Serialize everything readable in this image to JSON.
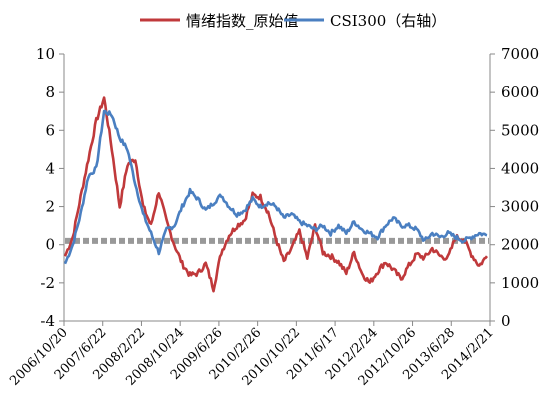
{
  "chart_data": {
    "type": "line",
    "legend_position": "top",
    "grid": false,
    "x_ticks": [
      "2006/10/20",
      "2007/6/22",
      "2008/2/22",
      "2008/10/24",
      "2009/6/26",
      "2010/2/26",
      "2010/10/22",
      "2011/6/17",
      "2012/2/24",
      "2012/10/26",
      "2013/6/28",
      "2014/2/21"
    ],
    "y_left": {
      "range": [
        -4,
        10
      ],
      "ticks": [
        "-4",
        "-2",
        "0",
        "2",
        "4",
        "6",
        "8",
        "10"
      ]
    },
    "y_right": {
      "range": [
        0,
        7000
      ],
      "ticks": [
        "0",
        "1000",
        "2000",
        "3000",
        "4000",
        "5000",
        "6000",
        "7000"
      ]
    },
    "baseline": 0.2,
    "series": [
      {
        "name": "情绪指数_原始值",
        "axis": "left",
        "color": "#c0393b",
        "values": [
          -0.6,
          0.4,
          2.5,
          4.5,
          6.5,
          7.7,
          5.0,
          2.0,
          4.2,
          4.5,
          2.0,
          1.0,
          2.8,
          1.2,
          0.0,
          -1.0,
          -1.6,
          -1.5,
          -1.0,
          -2.3,
          -0.4,
          0.5,
          1.0,
          1.3,
          2.6,
          2.5,
          1.7,
          0.3,
          -0.9,
          -0.2,
          0.7,
          -0.7,
          1.0,
          -0.4,
          -0.6,
          -0.9,
          -1.5,
          -0.4,
          -1.5,
          -2.0,
          -1.4,
          -0.9,
          -1.3,
          -1.8,
          -1.1,
          -0.5,
          -0.7,
          -0.2,
          -0.6,
          -0.7,
          0.4,
          0.3,
          -0.5,
          -1.1,
          -0.6
        ]
      },
      {
        "name": "CSI300（右轴）",
        "axis": "right",
        "color": "#4a7fc1",
        "values": [
          1500,
          2000,
          2800,
          3800,
          4000,
          5500,
          5400,
          4800,
          4500,
          3600,
          2800,
          2300,
          1800,
          2400,
          2500,
          3000,
          3400,
          3200,
          2900,
          3100,
          3300,
          3000,
          2800,
          2900,
          3200,
          3000,
          3100,
          3000,
          2700,
          2800,
          2600,
          2500,
          2400,
          2500,
          2300,
          2500,
          2300,
          2600,
          2400,
          2300,
          2200,
          2500,
          2700,
          2500,
          2500,
          2400,
          2100,
          2300,
          2200,
          2300,
          2200,
          2100,
          2200,
          2300,
          2250
        ]
      }
    ]
  }
}
